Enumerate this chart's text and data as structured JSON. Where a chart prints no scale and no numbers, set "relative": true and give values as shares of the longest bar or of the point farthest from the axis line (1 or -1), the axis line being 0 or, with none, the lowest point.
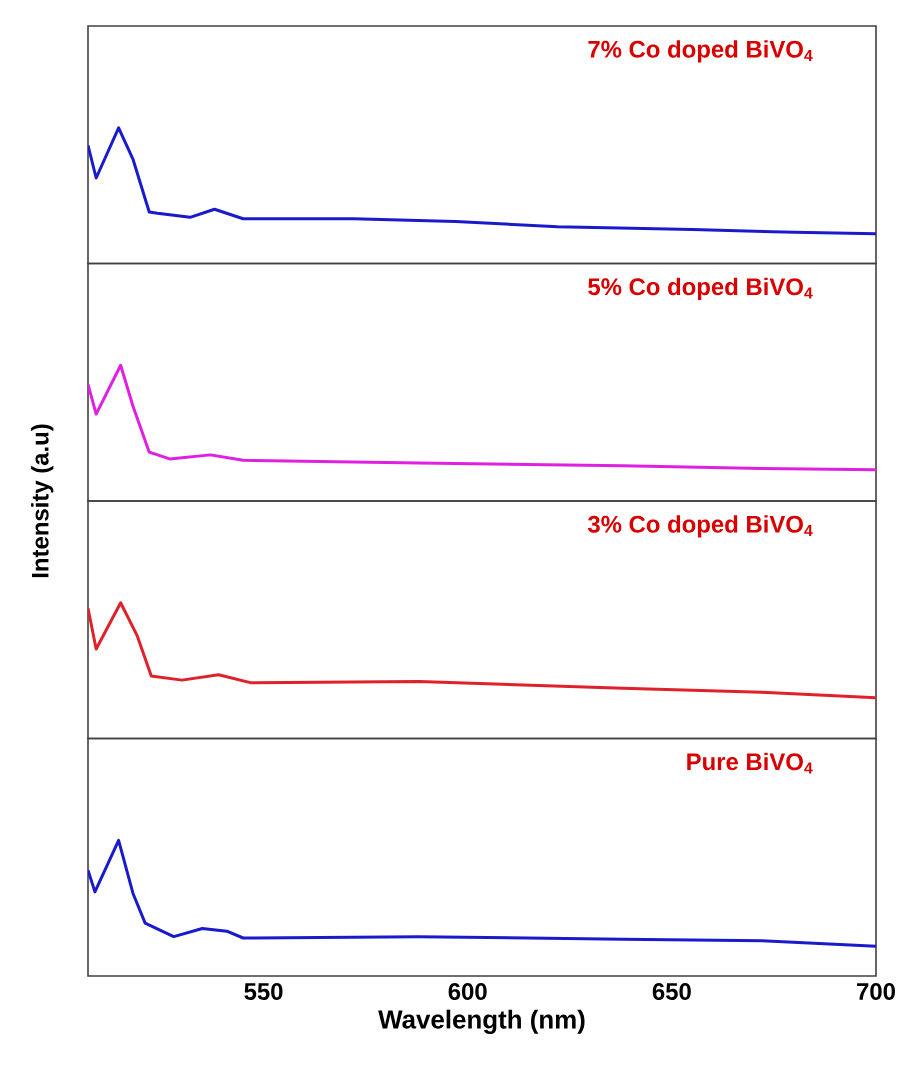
{
  "chart_data": [
    {
      "type": "line",
      "relative": true,
      "xlim": [
        507,
        700
      ],
      "tick_labels": false,
      "annotations": [
        "7% Co doped BiVO$_{4}$"
      ],
      "series": [
        {
          "color": "#1a1acd",
          "x": [
            507,
            509,
            514.5,
            518,
            522,
            524,
            532,
            538,
            545,
            572,
            597,
            622,
            655,
            680,
            700
          ],
          "values": [
            0.87,
            0.63,
            1.0,
            0.77,
            0.38,
            0.37,
            0.34,
            0.4,
            0.33,
            0.33,
            0.31,
            0.27,
            0.25,
            0.23,
            0.22
          ]
        }
      ]
    },
    {
      "type": "line",
      "relative": true,
      "xlim": [
        507,
        700
      ],
      "tick_labels": false,
      "ylabel": "Intensity (a.u)",
      "annotations": [
        "5% Co doped BiVO$_{4}$"
      ],
      "series": [
        {
          "color": "#e020e0",
          "x": [
            507,
            509,
            515,
            518,
            522,
            527,
            537,
            545,
            588,
            638,
            672,
            700
          ],
          "values": [
            0.86,
            0.64,
            1.0,
            0.7,
            0.36,
            0.31,
            0.34,
            0.3,
            0.28,
            0.26,
            0.24,
            0.23
          ]
        }
      ]
    },
    {
      "type": "line",
      "relative": true,
      "xlim": [
        507,
        700
      ],
      "tick_labels": false,
      "annotations": [
        "3% Co doped BiVO$_{4}$"
      ],
      "series": [
        {
          "color": "#e0202a",
          "x": [
            507,
            509,
            515,
            519,
            522.5,
            530,
            539,
            547,
            588,
            638,
            672,
            700
          ],
          "values": [
            0.96,
            0.66,
            1.0,
            0.76,
            0.46,
            0.43,
            0.47,
            0.41,
            0.42,
            0.37,
            0.34,
            0.3
          ]
        }
      ]
    },
    {
      "type": "line",
      "relative": true,
      "xlim": [
        507,
        700
      ],
      "xticks": [
        550,
        600,
        650,
        700
      ],
      "tick_labels": "x",
      "xlabel": "Wavelength (nm)",
      "annotations": [
        "Pure BiVO$_{4}$"
      ],
      "series": [
        {
          "color": "#1a1acd",
          "x": [
            507,
            508.7,
            514.5,
            518,
            521,
            528,
            535,
            541,
            545,
            588,
            638,
            672,
            700
          ],
          "values": [
            0.78,
            0.62,
            1.0,
            0.61,
            0.39,
            0.29,
            0.35,
            0.33,
            0.28,
            0.29,
            0.27,
            0.26,
            0.22
          ]
        }
      ]
    }
  ]
}
